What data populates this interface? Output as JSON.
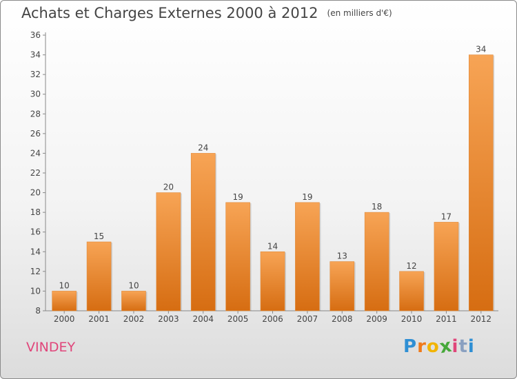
{
  "title": {
    "main": "Achats et Charges Externes 2000 à 2012",
    "unit": "(en milliers d'€)"
  },
  "commune": "VINDEY",
  "logo": {
    "text": "Proxiti",
    "letters": [
      "P",
      "r",
      "o",
      "x",
      "i",
      "t",
      "i"
    ],
    "colors": [
      "#2f8fd4",
      "#f07a1a",
      "#f2b400",
      "#46a83a",
      "#e0457a",
      "#8aa0c0",
      "#2f8fd4"
    ]
  },
  "colors": {
    "bar_top": "#f7a455",
    "bar_bottom": "#d66d12",
    "axis": "#888888",
    "text": "#444444",
    "commune": "#e0457a"
  },
  "chart_data": {
    "type": "bar",
    "title": "Achats et Charges Externes 2000 à 2012",
    "subtitle": "(en milliers d'€)",
    "xlabel": "",
    "ylabel": "",
    "categories": [
      "2000",
      "2001",
      "2002",
      "2003",
      "2004",
      "2005",
      "2006",
      "2007",
      "2008",
      "2009",
      "2010",
      "2011",
      "2012"
    ],
    "values": [
      10,
      15,
      10,
      20,
      24,
      19,
      14,
      19,
      13,
      18,
      12,
      17,
      34
    ],
    "ylim": [
      8,
      36
    ],
    "yticks": [
      8,
      10,
      12,
      14,
      16,
      18,
      20,
      22,
      24,
      26,
      28,
      30,
      32,
      34,
      36
    ],
    "grid": false,
    "legend": "none"
  }
}
